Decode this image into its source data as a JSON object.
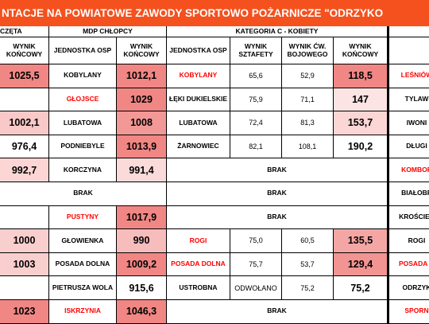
{
  "header": {
    "title": "NTACJE NA POWIATOWE ZAWODY SPORTOWO POŻARNICZE \"ODRZYKO",
    "groups": [
      "CZĘTA",
      "MDP CHŁOPCY",
      "KATEGORIA C - KOBIETY"
    ],
    "columns": [
      "WYNIK KOŃCOWY",
      "JEDNOSTKA OSP",
      "WYNIK KOŃCOWY",
      "JEDNOSTKA OSP",
      "WYNIK SZTAFETY",
      "WYNIK ĆW. BOJOWEGO",
      "WYNIK KOŃCOWY"
    ]
  },
  "table": {
    "rows": [
      [
        {
          "text": "1025,5",
          "fill": "#f08784"
        },
        "KOBYLANY",
        {
          "text": "1012,1",
          "fill": "#f08784"
        },
        {
          "text": "KOBYLANY",
          "color": "#ff0000"
        },
        "65,6",
        "52,9",
        {
          "text": "118,5",
          "fill": "#f08784"
        },
        {
          "text": "LEŚNIÓW",
          "color": "#ff0000"
        }
      ],
      [
        null,
        {
          "text": "GŁOJSCE",
          "color": "#ff0000"
        },
        {
          "text": "1029",
          "fill": "#f08784"
        },
        "ŁĘKI DUKIELSKIE",
        "75,9",
        "71,1",
        {
          "text": "147",
          "fill": "#fde4e4"
        },
        "TYLAW"
      ],
      [
        {
          "text": "1002,1",
          "fill": "#f8c9c8"
        },
        "LUBATOWA",
        {
          "text": "1008",
          "fill": "#f29896"
        },
        "LUBATOWA",
        "72,4",
        "81,3",
        {
          "text": "153,7",
          "fill": "#fbd6d5"
        },
        "IWONI"
      ],
      [
        "976,4",
        "PODNIEBYLE",
        {
          "text": "1013,9",
          "fill": "#f08784"
        },
        "ŻARNOWIEC",
        "82,1",
        "108,1",
        "190,2",
        "DŁUGI"
      ],
      [
        {
          "text": "992,7",
          "fill": "#fbd6d5"
        },
        "KORCZYNA",
        {
          "text": "991,4",
          "fill": "#fbdada"
        },
        "BRAK",
        {
          "text": "KOMBOR",
          "color": "#ff0000"
        }
      ],
      [
        "BRAK",
        "BRAK",
        "BIAŁOBR"
      ],
      [
        null,
        {
          "text": "PUSTYNY",
          "color": "#ff0000"
        },
        {
          "text": "1017,9",
          "fill": "#f08784"
        },
        "BRAK",
        "KROŚCIEN"
      ],
      [
        {
          "text": "1000",
          "fill": "#f9cfce"
        },
        "GŁOWIENKA",
        {
          "text": "990",
          "fill": "#f7bdbc"
        },
        {
          "text": "ROGI",
          "color": "#ff0000"
        },
        "75,0",
        "60,5",
        {
          "text": "135,5",
          "fill": "#f4a6a4"
        },
        "ROGI"
      ],
      [
        {
          "text": "1003",
          "fill": "#f9cfce"
        },
        "POSADA DOLNA",
        {
          "text": "1009,2",
          "fill": "#f08784"
        },
        {
          "text": "POSADA DOLNA",
          "color": "#ff0000"
        },
        "75,7",
        "53,7",
        {
          "text": "129,4",
          "fill": "#f29492"
        },
        {
          "text": "POSADA G",
          "color": "#ff0000"
        }
      ],
      [
        null,
        "PIETRUSZA WOLA",
        "915,6",
        "USTROBNA",
        "ODWOŁANO",
        "75,2",
        "75,2",
        "ODRZYK"
      ],
      [
        {
          "text": "1023",
          "fill": "#f08784"
        },
        {
          "text": "ISKRZYNIA",
          "color": "#ff0000"
        },
        {
          "text": "1046,3",
          "fill": "#f08784"
        },
        "BRAK",
        {
          "text": "SPORN",
          "color": "#ff0000"
        }
      ]
    ]
  }
}
